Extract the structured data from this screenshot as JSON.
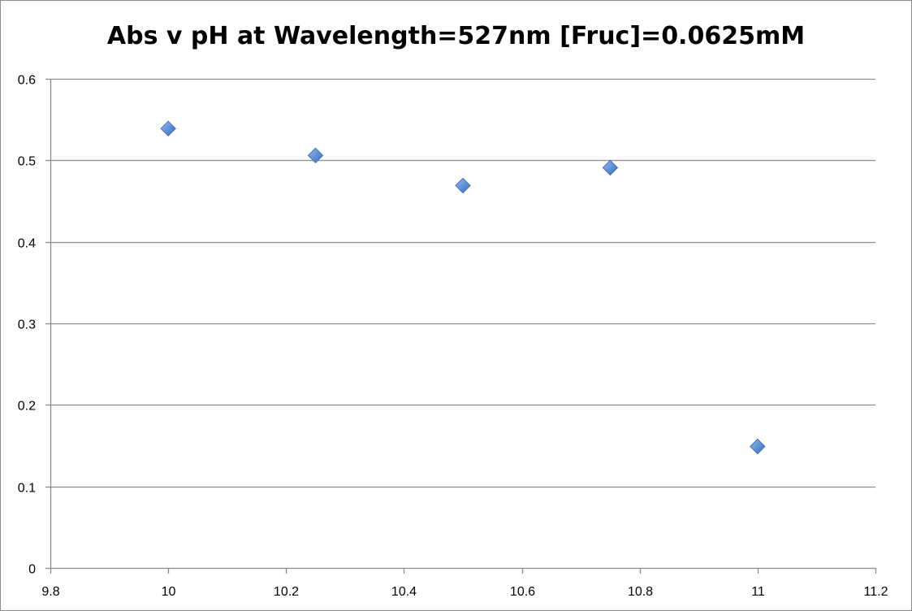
{
  "chart_data": {
    "type": "scatter",
    "title": "Abs v pH at Wavelength=527nm [Fruc]=0.0625mM",
    "xlabel": "",
    "ylabel": "",
    "xlim": [
      9.8,
      11.2
    ],
    "ylim": [
      0,
      0.6
    ],
    "x_ticks": [
      "9.8",
      "10",
      "10.2",
      "10.4",
      "10.6",
      "10.8",
      "11",
      "11.2"
    ],
    "y_ticks": [
      "0",
      "0.1",
      "0.2",
      "0.3",
      "0.4",
      "0.5",
      "0.6"
    ],
    "grid": "horizontal",
    "legend": "none",
    "marker": "diamond",
    "marker_color": "#5b8fd6",
    "series": [
      {
        "x": [
          10,
          10.25,
          10.5,
          10.75,
          11
        ],
        "y": [
          0.539,
          0.506,
          0.469,
          0.491,
          0.149
        ]
      }
    ]
  }
}
